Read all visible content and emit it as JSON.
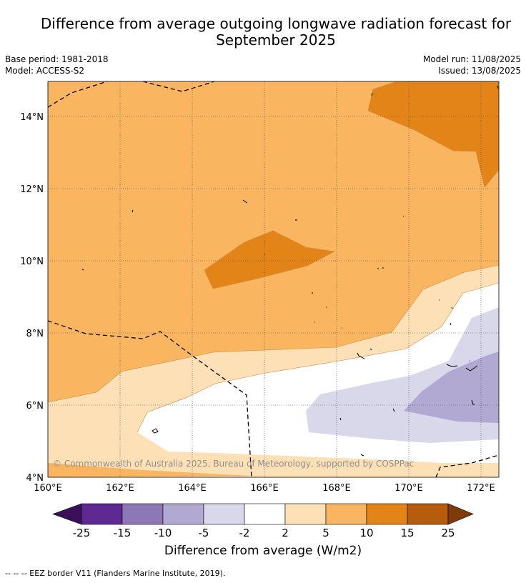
{
  "title_line1": "Difference from average outgoing longwave radiation forecast for",
  "title_line2": "September 2025",
  "base_period": "Base period: 1981-2018",
  "model": "Model: ACCESS-S2",
  "model_run": "Model run: 11/08/2025",
  "issued": "Issued: 13/08/2025",
  "copyright": "© Commonwealth of Australia 2025, Bureau of Meteorology, supported by COSPPac",
  "footer": "--  --  -- EEZ border V11 (Flanders Marine Institute, 2019).",
  "map": {
    "lat_labels": [
      "14°N",
      "12°N",
      "10°N",
      "8°N",
      "6°N",
      "4°N"
    ],
    "lon_labels": [
      "160°E",
      "162°E",
      "164°E",
      "166°E",
      "168°E",
      "170°E",
      "172°E"
    ]
  },
  "legend": {
    "label": "Difference from average (W/m2)",
    "ticks": [
      "-25",
      "-15",
      "-10",
      "-5",
      "-2",
      "2",
      "5",
      "10",
      "15",
      "25"
    ],
    "colors": [
      "#3b0f5a",
      "#5e2a91",
      "#8b78b5",
      "#b2a9d3",
      "#d8d8ea",
      "#ffffff",
      "#fde0b5",
      "#fab560",
      "#e28418",
      "#b75c0d",
      "#7e3a08"
    ]
  },
  "colors": {
    "orange_light": "#fab560",
    "orange_mid": "#e28418",
    "peach": "#fde0b5",
    "lavender_light": "#d8d8ea",
    "lavender": "#b2a9d3"
  }
}
